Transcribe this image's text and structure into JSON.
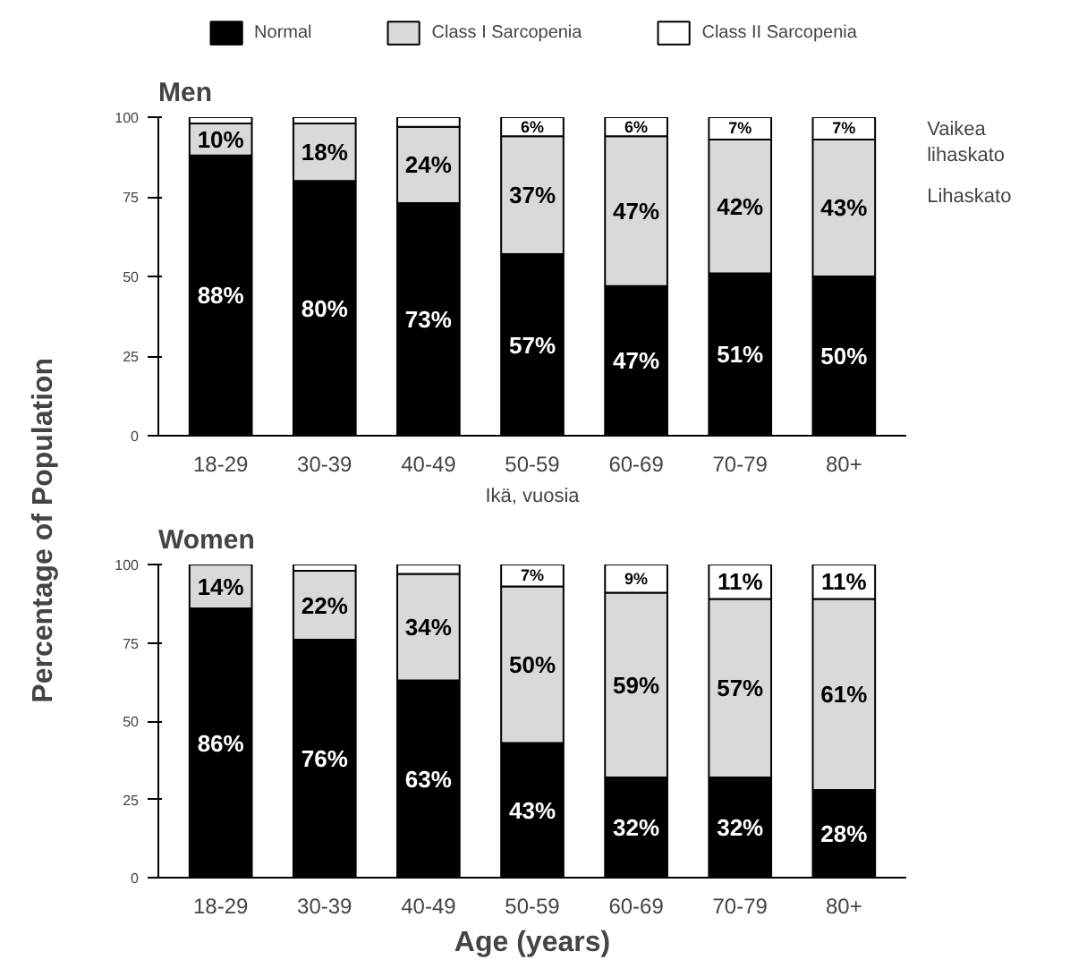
{
  "chart_data": [
    {
      "type": "bar",
      "title": "Men",
      "ylabel": "Percentage of Population",
      "stacked": true,
      "legend": "top",
      "categories": [
        "18-29",
        "30-39",
        "40-49",
        "50-59",
        "60-69",
        "70-79",
        "80+"
      ],
      "series": [
        {
          "name": "Normal",
          "color": "#000000",
          "values": [
            88,
            80,
            73,
            57,
            47,
            51,
            50
          ],
          "value_labels": [
            "88%",
            "80%",
            "73%",
            "57%",
            "47%",
            "51%",
            "50%"
          ]
        },
        {
          "name": "Class I Sarcopenia",
          "color": "#d9d9d9",
          "values": [
            10,
            18,
            24,
            37,
            47,
            42,
            43
          ],
          "value_labels": [
            "10%",
            "18%",
            "24%",
            "37%",
            "47%",
            "42%",
            "43%"
          ]
        },
        {
          "name": "Class II Sarcopenia",
          "color": "#ffffff",
          "values": [
            2,
            2,
            3,
            6,
            6,
            7,
            7
          ],
          "value_labels": [
            null,
            null,
            null,
            "6%",
            "6%",
            "7%",
            "7%"
          ]
        }
      ],
      "ylim": [
        0,
        100
      ],
      "yticks": [
        0,
        25,
        50,
        75,
        100
      ],
      "annotations": [
        "Vaikea lihaskato",
        "Lihaskato",
        "Ikä, vuosia"
      ]
    },
    {
      "type": "bar",
      "title": "Women",
      "xlabel": "Age (years)",
      "stacked": true,
      "categories": [
        "18-29",
        "30-39",
        "40-49",
        "50-59",
        "60-69",
        "70-79",
        "80+"
      ],
      "series": [
        {
          "color": "#000000",
          "values": [
            86,
            76,
            63,
            43,
            32,
            32,
            28
          ],
          "value_labels": [
            "86%",
            "76%",
            "63%",
            "43%",
            "32%",
            "32%",
            "28%"
          ]
        },
        {
          "color": "#d9d9d9",
          "values": [
            14,
            22,
            34,
            50,
            59,
            57,
            61
          ],
          "value_labels": [
            "14%",
            "22%",
            "34%",
            "50%",
            "59%",
            "57%",
            "61%"
          ]
        },
        {
          "color": "#ffffff",
          "values": [
            0,
            2,
            3,
            7,
            9,
            11,
            11
          ],
          "value_labels": [
            null,
            null,
            null,
            "7%",
            "9%",
            "11%",
            "11%"
          ]
        }
      ],
      "ylim": [
        0,
        100
      ],
      "yticks": [
        0,
        25,
        50,
        75,
        100
      ]
    }
  ]
}
